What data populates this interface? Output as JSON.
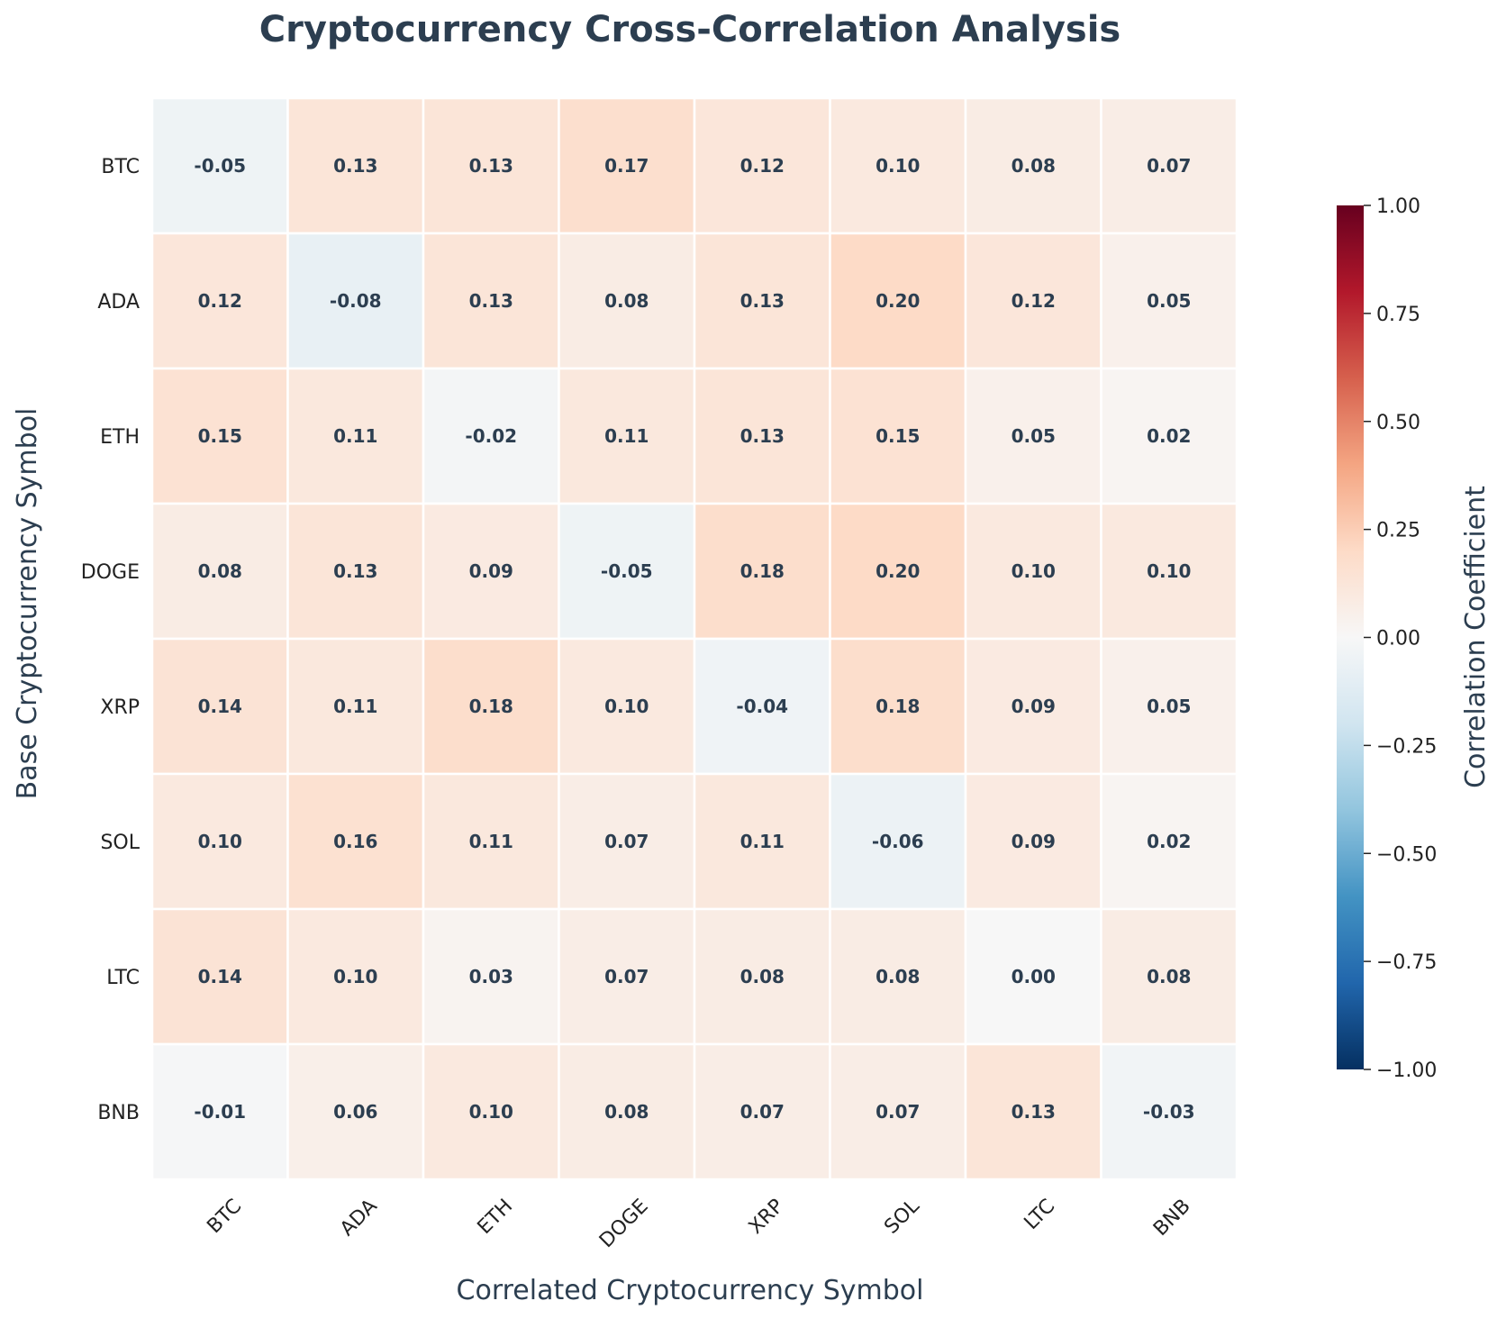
{
  "chart_data": {
    "type": "heatmap",
    "title": "Cryptocurrency Cross-Correlation Analysis",
    "xlabel": "Correlated Cryptocurrency Symbol",
    "ylabel": "Base Cryptocurrency Symbol",
    "x_categories": [
      "BTC",
      "ADA",
      "ETH",
      "DOGE",
      "XRP",
      "SOL",
      "LTC",
      "BNB"
    ],
    "y_categories": [
      "BTC",
      "ADA",
      "ETH",
      "DOGE",
      "XRP",
      "SOL",
      "LTC",
      "BNB"
    ],
    "values": [
      [
        -0.05,
        0.13,
        0.13,
        0.17,
        0.12,
        0.1,
        0.08,
        0.07
      ],
      [
        0.12,
        -0.08,
        0.13,
        0.08,
        0.13,
        0.2,
        0.12,
        0.05
      ],
      [
        0.15,
        0.11,
        -0.02,
        0.11,
        0.13,
        0.15,
        0.05,
        0.02
      ],
      [
        0.08,
        0.13,
        0.09,
        -0.05,
        0.18,
        0.2,
        0.1,
        0.1
      ],
      [
        0.14,
        0.11,
        0.18,
        0.1,
        -0.04,
        0.18,
        0.09,
        0.05
      ],
      [
        0.1,
        0.16,
        0.11,
        0.07,
        0.11,
        -0.06,
        0.09,
        0.02
      ],
      [
        0.14,
        0.1,
        0.03,
        0.07,
        0.08,
        0.08,
        0.0,
        0.08
      ],
      [
        -0.01,
        0.06,
        0.1,
        0.08,
        0.07,
        0.07,
        0.13,
        -0.03
      ]
    ],
    "value_format": "0.00",
    "colormap": "RdBu_r",
    "vmin": -1.0,
    "vmax": 1.0,
    "colorbar": {
      "label": "Correlation Coefficient",
      "ticks": [
        1.0,
        0.75,
        0.5,
        0.25,
        0.0,
        -0.25,
        -0.5,
        -0.75,
        -1.0
      ],
      "tick_labels": [
        "1.00",
        "0.75",
        "0.50",
        "0.25",
        "0.00",
        "−0.25",
        "−0.50",
        "−0.75",
        "−1.00"
      ]
    },
    "colors": {
      "title": "#2c3e50",
      "annotation": "#2c3e50",
      "cell_border": "#ffffff"
    }
  }
}
